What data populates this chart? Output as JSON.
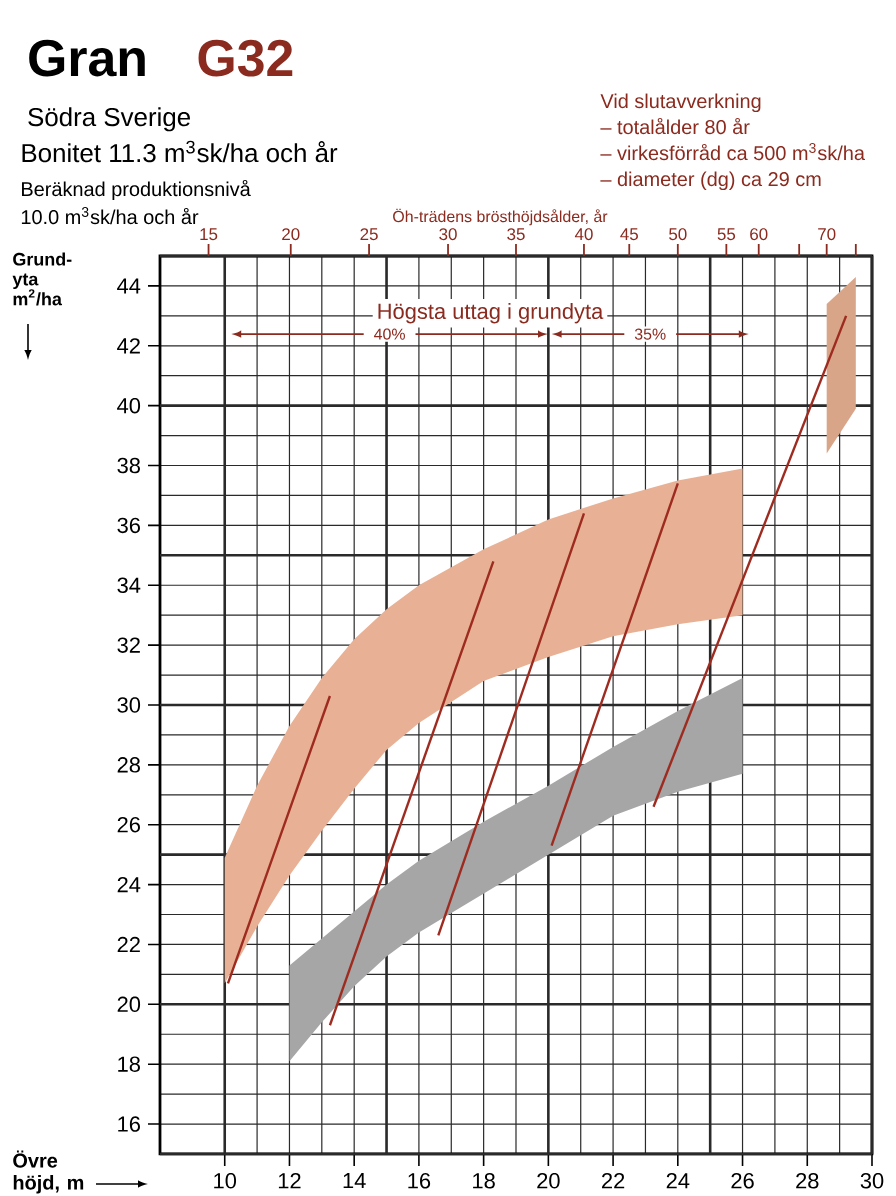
{
  "chart_data": {
    "type": "line",
    "title": "Gran",
    "subtitle": "Södra Sverige",
    "annotations": [
      "G32",
      "Bonitet 11.3 m$^{3}$sk/ha och år",
      "Beräknad produktionsnivå",
      "10.0 m$^{3}$sk/ha och år",
      "Vid slutavverkning",
      "– totalålder 80 år",
      "– virkesförråd ca 500 m$^{3}$sk/ha",
      "– diameter (dg) ca 29 cm",
      "Högsta uttag i grundyta",
      "Öh-trädens brösthöjdsålder, år",
      "40%",
      "35%",
      "15",
      "20",
      "25",
      "30",
      "35",
      "40",
      "45",
      "50",
      "55",
      "60",
      "70"
    ],
    "xlabel": "Övre höjd, m",
    "ylabel": "Grund-yta m$^{2}$/ha",
    "xlim": [
      8,
      30
    ],
    "ylim": [
      15,
      45
    ],
    "xticks": [
      10,
      12,
      14,
      16,
      18,
      20,
      22,
      24,
      26,
      28,
      30
    ],
    "yticks": [
      16,
      18,
      20,
      22,
      24,
      26,
      28,
      30,
      32,
      34,
      36,
      38,
      40,
      42,
      44
    ],
    "grid": true,
    "series": [
      {
        "type": "area",
        "color": "#e8b195",
        "x": [
          10,
          11,
          12,
          13,
          14,
          15,
          16,
          18,
          20,
          22,
          24,
          26
        ],
        "values": [
          null,
          null,
          null,
          null,
          null,
          null,
          null,
          null,
          null,
          null,
          null,
          null
        ],
        "lower": [
          20.7,
          22.6,
          24.3,
          25.8,
          27.2,
          28.5,
          29.4,
          30.8,
          31.6,
          32.3,
          32.7,
          33.0
        ],
        "upper": [
          24.9,
          27.3,
          29.3,
          30.9,
          32.2,
          33.2,
          34.0,
          35.2,
          36.2,
          36.9,
          37.5,
          37.9
        ]
      },
      {
        "type": "area",
        "color": "#a6a6a6",
        "x": [
          12,
          13,
          14,
          15,
          16,
          18,
          20,
          22,
          24,
          26
        ],
        "values": [
          null,
          null,
          null,
          null,
          null,
          null,
          null,
          null,
          null,
          null
        ],
        "lower": [
          18.1,
          19.4,
          20.6,
          21.6,
          22.4,
          23.7,
          25.0,
          26.3,
          27.1,
          27.7
        ],
        "upper": [
          21.3,
          22.2,
          23.1,
          24.0,
          24.8,
          26.1,
          27.3,
          28.6,
          29.8,
          30.9
        ]
      },
      {
        "type": "area",
        "color": "#d9a588",
        "x": [
          28.6,
          29.5
        ],
        "values": [
          null,
          null
        ],
        "lower": [
          38.4,
          39.9
        ],
        "upper": [
          43.4,
          44.3
        ]
      },
      {
        "color": "#9e2b20",
        "x": [
          10.1,
          13.25
        ],
        "values": [
          20.7,
          30.3
        ]
      },
      {
        "color": "#9e2b20",
        "x": [
          13.25,
          18.3
        ],
        "values": [
          19.3,
          34.8
        ]
      },
      {
        "color": "#9e2b20",
        "x": [
          16.6,
          21.1
        ],
        "values": [
          22.3,
          36.4
        ]
      },
      {
        "color": "#9e2b20",
        "x": [
          20.1,
          24.0
        ],
        "values": [
          25.3,
          37.4
        ]
      },
      {
        "color": "#9e2b20",
        "x": [
          23.25,
          29.2
        ],
        "values": [
          26.6,
          43.0
        ]
      }
    ]
  }
}
